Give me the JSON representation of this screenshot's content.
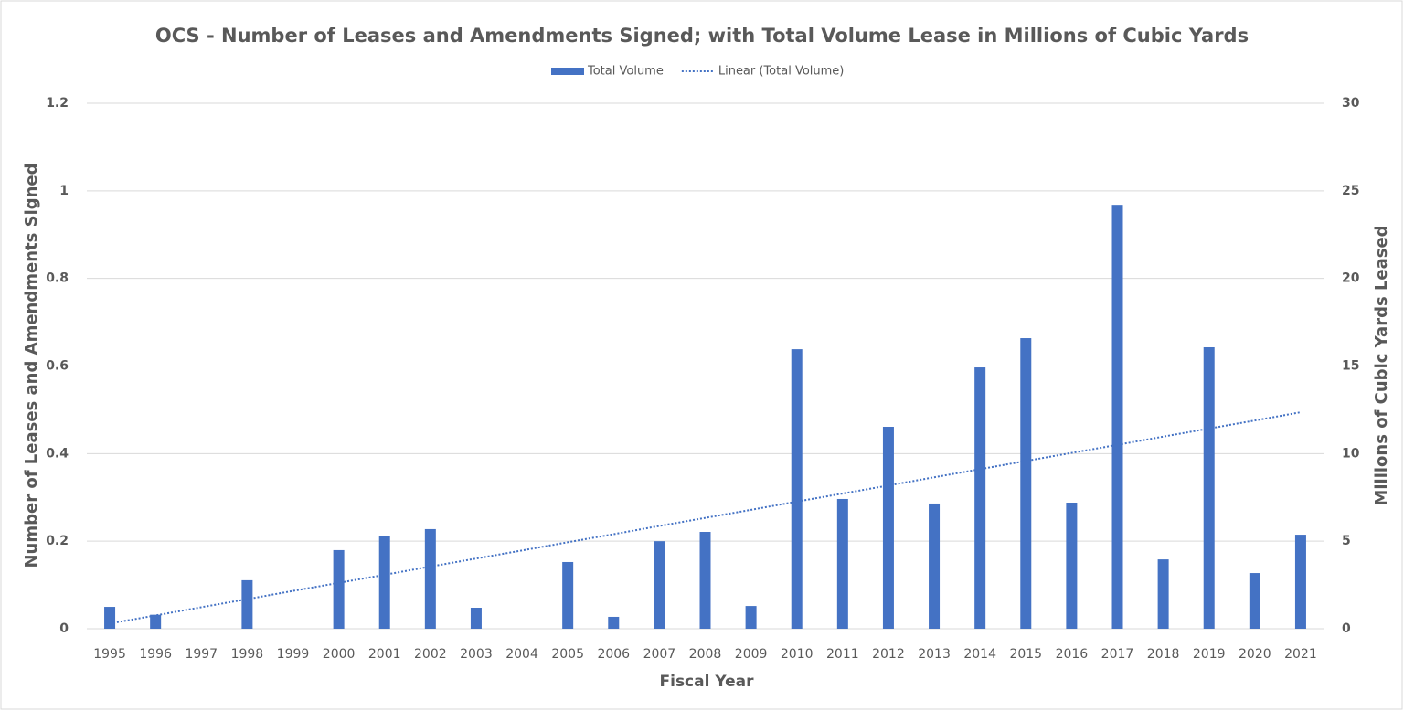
{
  "chart_data": {
    "type": "bar",
    "title": "OCS - Number of Leases and Amendments Signed; with Total Volume Lease in Millions of Cubic Yards",
    "x_label": "Fiscal Year",
    "y_label": "Number of Leases and Amendments Signed",
    "y2_label": "Millions of Cubic Yards Leased",
    "categories": [
      "1995",
      "1996",
      "1997",
      "1998",
      "1999",
      "2000",
      "2001",
      "2002",
      "2003",
      "2004",
      "2005",
      "2006",
      "2007",
      "2008",
      "2009",
      "2010",
      "2011",
      "2012",
      "2013",
      "2014",
      "2015",
      "2016",
      "2017",
      "2018",
      "2019",
      "2020",
      "2021"
    ],
    "ylim": [
      0,
      1.2
    ],
    "yticks": [
      0,
      0.2,
      0.4,
      0.6,
      0.8,
      1,
      1.2
    ],
    "y2lim": [
      0,
      30
    ],
    "y2ticks": [
      0,
      5,
      10,
      15,
      20,
      25,
      30
    ],
    "grid": true,
    "legend": "top",
    "series": [
      {
        "name": "Total Volume",
        "type": "bar",
        "axis": "y2",
        "color": "#4472c4",
        "values": [
          1.25,
          0.8,
          0,
          2.77,
          0,
          4.49,
          5.27,
          5.69,
          1.2,
          0,
          3.81,
          0.68,
          5.0,
          5.53,
          1.3,
          15.96,
          7.41,
          11.53,
          7.15,
          14.92,
          16.59,
          7.2,
          24.2,
          3.96,
          16.07,
          3.18,
          5.37
        ]
      },
      {
        "name": "Linear (Total Volume)",
        "type": "line",
        "style": "dotted",
        "axis": "y2",
        "color": "#4472c4",
        "values": [
          0.3,
          0.76,
          1.23,
          1.69,
          2.16,
          2.62,
          3.08,
          3.55,
          4.01,
          4.47,
          4.94,
          5.4,
          5.87,
          6.33,
          6.79,
          7.26,
          7.72,
          8.18,
          8.65,
          9.11,
          9.58,
          10.04,
          10.5,
          10.97,
          11.43,
          11.89,
          12.36
        ]
      }
    ]
  }
}
